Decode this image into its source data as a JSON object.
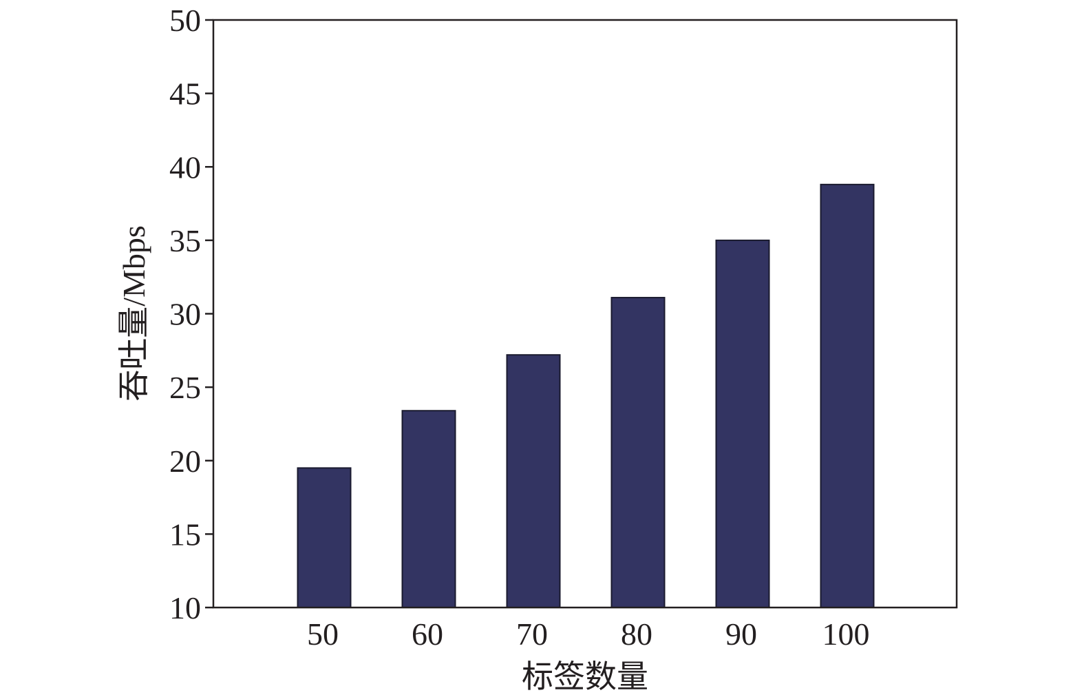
{
  "chart_data": {
    "type": "bar",
    "categories": [
      "50",
      "60",
      "70",
      "80",
      "90",
      "100"
    ],
    "values": [
      19.5,
      23.4,
      27.2,
      31.1,
      35.0,
      38.8
    ],
    "xlabel": "标签数量",
    "ylabel": "吞吐量/Mbps",
    "ylim": [
      10,
      50
    ],
    "yticks": [
      "10",
      "15",
      "20",
      "25",
      "30",
      "35",
      "40",
      "45",
      "50"
    ],
    "grid": false,
    "legend": "none",
    "colors": {
      "bar_fill": "#333462",
      "bar_edge": "#1a1a2e",
      "axis": "#231f20"
    }
  }
}
